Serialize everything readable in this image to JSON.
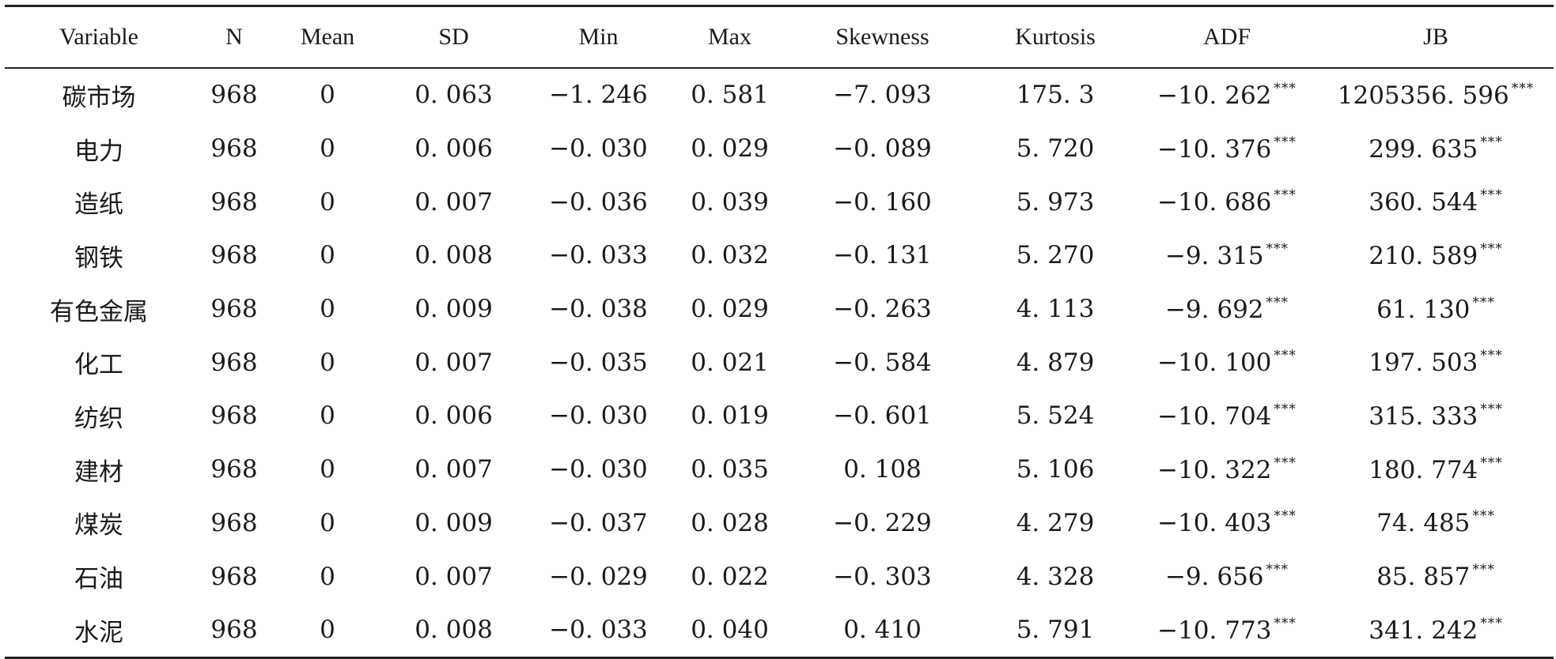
{
  "table": {
    "columns": [
      "Variable",
      "N",
      "Mean",
      "SD",
      "Min",
      "Max",
      "Skewness",
      "Kurtosis",
      "ADF",
      "JB"
    ],
    "significance_mark": "***",
    "rows": [
      {
        "Variable": "碳市场",
        "N": "968",
        "Mean": "0",
        "SD": "0. 063",
        "Min": "−1. 246",
        "Max": "0. 581",
        "Skewness": "−7. 093",
        "Kurtosis": "175. 3",
        "ADF": "−10. 262",
        "JB": "1205356. 596"
      },
      {
        "Variable": "电力",
        "N": "968",
        "Mean": "0",
        "SD": "0. 006",
        "Min": "−0. 030",
        "Max": "0. 029",
        "Skewness": "−0. 089",
        "Kurtosis": "5. 720",
        "ADF": "−10. 376",
        "JB": "299. 635"
      },
      {
        "Variable": "造纸",
        "N": "968",
        "Mean": "0",
        "SD": "0. 007",
        "Min": "−0. 036",
        "Max": "0. 039",
        "Skewness": "−0. 160",
        "Kurtosis": "5. 973",
        "ADF": "−10. 686",
        "JB": "360. 544"
      },
      {
        "Variable": "钢铁",
        "N": "968",
        "Mean": "0",
        "SD": "0. 008",
        "Min": "−0. 033",
        "Max": "0. 032",
        "Skewness": "−0. 131",
        "Kurtosis": "5. 270",
        "ADF": "−9. 315",
        "JB": "210. 589"
      },
      {
        "Variable": "有色金属",
        "N": "968",
        "Mean": "0",
        "SD": "0. 009",
        "Min": "−0. 038",
        "Max": "0. 029",
        "Skewness": "−0. 263",
        "Kurtosis": "4. 113",
        "ADF": "−9. 692",
        "JB": "61. 130"
      },
      {
        "Variable": "化工",
        "N": "968",
        "Mean": "0",
        "SD": "0. 007",
        "Min": "−0. 035",
        "Max": "0. 021",
        "Skewness": "−0. 584",
        "Kurtosis": "4. 879",
        "ADF": "−10. 100",
        "JB": "197. 503"
      },
      {
        "Variable": "纺织",
        "N": "968",
        "Mean": "0",
        "SD": "0. 006",
        "Min": "−0. 030",
        "Max": "0. 019",
        "Skewness": "−0. 601",
        "Kurtosis": "5. 524",
        "ADF": "−10. 704",
        "JB": "315. 333"
      },
      {
        "Variable": "建材",
        "N": "968",
        "Mean": "0",
        "SD": "0. 007",
        "Min": "−0. 030",
        "Max": "0. 035",
        "Skewness": "0. 108",
        "Kurtosis": "5. 106",
        "ADF": "−10. 322",
        "JB": "180. 774"
      },
      {
        "Variable": "煤炭",
        "N": "968",
        "Mean": "0",
        "SD": "0. 009",
        "Min": "−0. 037",
        "Max": "0. 028",
        "Skewness": "−0. 229",
        "Kurtosis": "4. 279",
        "ADF": "−10. 403",
        "JB": "74. 485"
      },
      {
        "Variable": "石油",
        "N": "968",
        "Mean": "0",
        "SD": "0. 007",
        "Min": "−0. 029",
        "Max": "0. 022",
        "Skewness": "−0. 303",
        "Kurtosis": "4. 328",
        "ADF": "−9. 656",
        "JB": "85. 857"
      },
      {
        "Variable": "水泥",
        "N": "968",
        "Mean": "0",
        "SD": "0. 008",
        "Min": "−0. 033",
        "Max": "0. 040",
        "Skewness": "0. 410",
        "Kurtosis": "5. 791",
        "ADF": "−10. 773",
        "JB": "341. 242"
      }
    ]
  }
}
